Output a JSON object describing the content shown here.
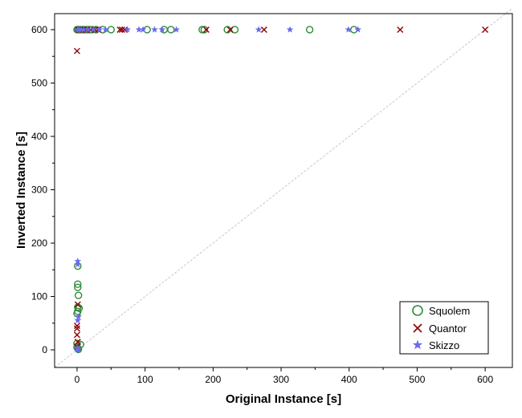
{
  "chart_data": {
    "type": "scatter",
    "title": "",
    "xlabel": "Original Instance [s]",
    "ylabel": "Inverted Instance [s]",
    "xlim": [
      -33,
      640
    ],
    "ylim": [
      -33,
      630
    ],
    "xticks": [
      0,
      100,
      200,
      300,
      400,
      500,
      600
    ],
    "yticks": [
      0,
      100,
      200,
      300,
      400,
      500,
      600
    ],
    "grid": false,
    "legend_position": "bottom-right",
    "diagonal": {
      "from": [
        -33,
        -33
      ],
      "to": [
        640,
        640
      ],
      "style": "dashed",
      "color": "#c8c8c8"
    },
    "series": [
      {
        "name": "Squolem",
        "marker": "circle",
        "color": "#2e8b3a",
        "points": [
          [
            0,
            600
          ],
          [
            1,
            600
          ],
          [
            2,
            600
          ],
          [
            3,
            600
          ],
          [
            5,
            600
          ],
          [
            8,
            600
          ],
          [
            10,
            600
          ],
          [
            14,
            600
          ],
          [
            18,
            600
          ],
          [
            22,
            600
          ],
          [
            28,
            600
          ],
          [
            38,
            600
          ],
          [
            50,
            600
          ],
          [
            103,
            600
          ],
          [
            128,
            600
          ],
          [
            138,
            600
          ],
          [
            184,
            600
          ],
          [
            187,
            600
          ],
          [
            221,
            600
          ],
          [
            232,
            600
          ],
          [
            342,
            600
          ],
          [
            407,
            600
          ],
          [
            1,
            157
          ],
          [
            1,
            123
          ],
          [
            1,
            117
          ],
          [
            2,
            102
          ],
          [
            1,
            80
          ],
          [
            3,
            78
          ],
          [
            1,
            72
          ],
          [
            0,
            68
          ],
          [
            0,
            12
          ],
          [
            5,
            10
          ],
          [
            0,
            5
          ],
          [
            1,
            3
          ],
          [
            2,
            1
          ]
        ]
      },
      {
        "name": "Quantor",
        "marker": "x",
        "color": "#8b0000",
        "points": [
          [
            2,
            600
          ],
          [
            5,
            600
          ],
          [
            9,
            600
          ],
          [
            14,
            600
          ],
          [
            20,
            600
          ],
          [
            27,
            600
          ],
          [
            31,
            600
          ],
          [
            63,
            600
          ],
          [
            66,
            600
          ],
          [
            70,
            600
          ],
          [
            190,
            600
          ],
          [
            225,
            600
          ],
          [
            275,
            600
          ],
          [
            475,
            600
          ],
          [
            600,
            600
          ],
          [
            0,
            560
          ],
          [
            1,
            85
          ],
          [
            0,
            45
          ],
          [
            0,
            40
          ],
          [
            0,
            28
          ],
          [
            1,
            15
          ],
          [
            0,
            6
          ]
        ]
      },
      {
        "name": "Skizzo",
        "marker": "star",
        "color": "#6a6aee",
        "points": [
          [
            1,
            600
          ],
          [
            3,
            600
          ],
          [
            6,
            600
          ],
          [
            10,
            600
          ],
          [
            16,
            600
          ],
          [
            24,
            600
          ],
          [
            33,
            600
          ],
          [
            42,
            600
          ],
          [
            74,
            600
          ],
          [
            91,
            600
          ],
          [
            97,
            600
          ],
          [
            114,
            600
          ],
          [
            125,
            600
          ],
          [
            146,
            600
          ],
          [
            267,
            600
          ],
          [
            313,
            600
          ],
          [
            399,
            600
          ],
          [
            413,
            600
          ],
          [
            1,
            166
          ],
          [
            1,
            160
          ],
          [
            2,
            62
          ],
          [
            1,
            55
          ],
          [
            0,
            3
          ],
          [
            1,
            1
          ],
          [
            2,
            0
          ]
        ]
      }
    ]
  }
}
